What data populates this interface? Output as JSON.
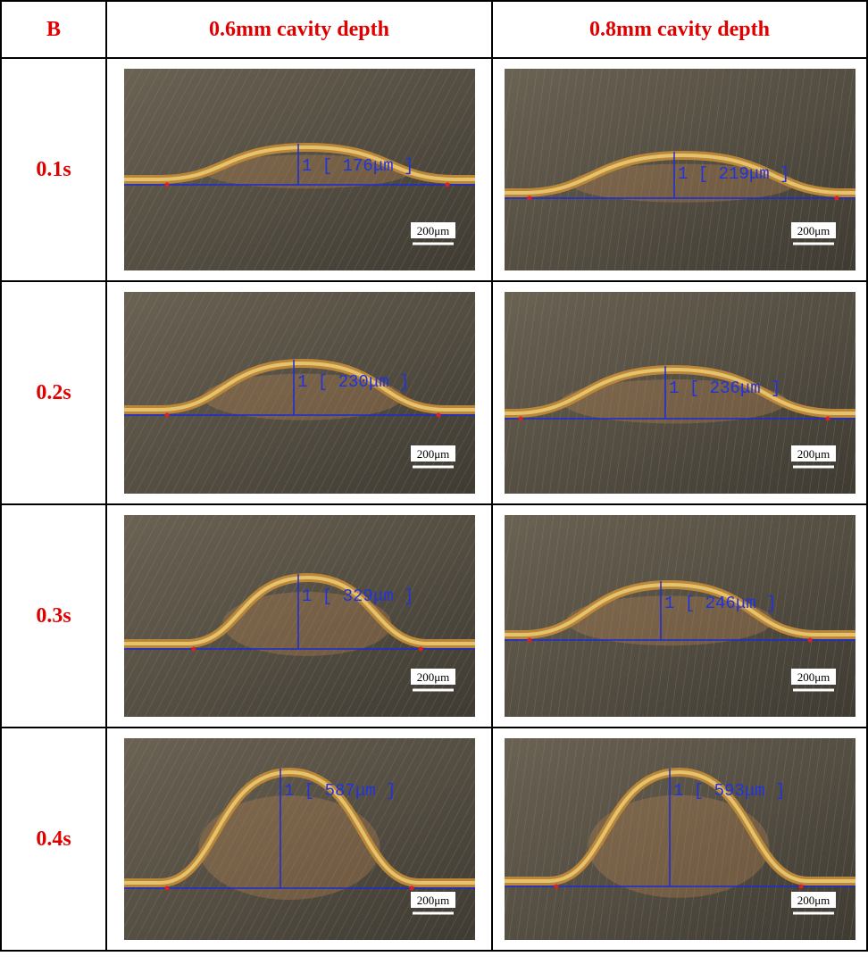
{
  "table": {
    "header": [
      "B",
      "0.6mm cavity depth",
      "0.8mm cavity depth"
    ],
    "rows": [
      {
        "label": "0.1s",
        "cells": [
          {
            "measurement": "1 [ 176μm ]",
            "scale": "200μm"
          },
          {
            "measurement": "1 [ 219μm ]",
            "scale": "200μm"
          }
        ]
      },
      {
        "label": "0.2s",
        "cells": [
          {
            "measurement": "1 [ 230μm ]",
            "scale": "200μm"
          },
          {
            "measurement": "1 [ 236μm ]",
            "scale": "200μm"
          }
        ]
      },
      {
        "label": "0.3s",
        "cells": [
          {
            "measurement": "1 [ 329μm ]",
            "scale": "200μm"
          },
          {
            "measurement": "1 [ 246μm ]",
            "scale": "200μm"
          }
        ]
      },
      {
        "label": "0.4s",
        "cells": [
          {
            "measurement": "1 [ 587μm ]",
            "scale": "200μm"
          },
          {
            "measurement": "1 [ 593μm ]",
            "scale": "200μm"
          }
        ]
      }
    ]
  }
}
